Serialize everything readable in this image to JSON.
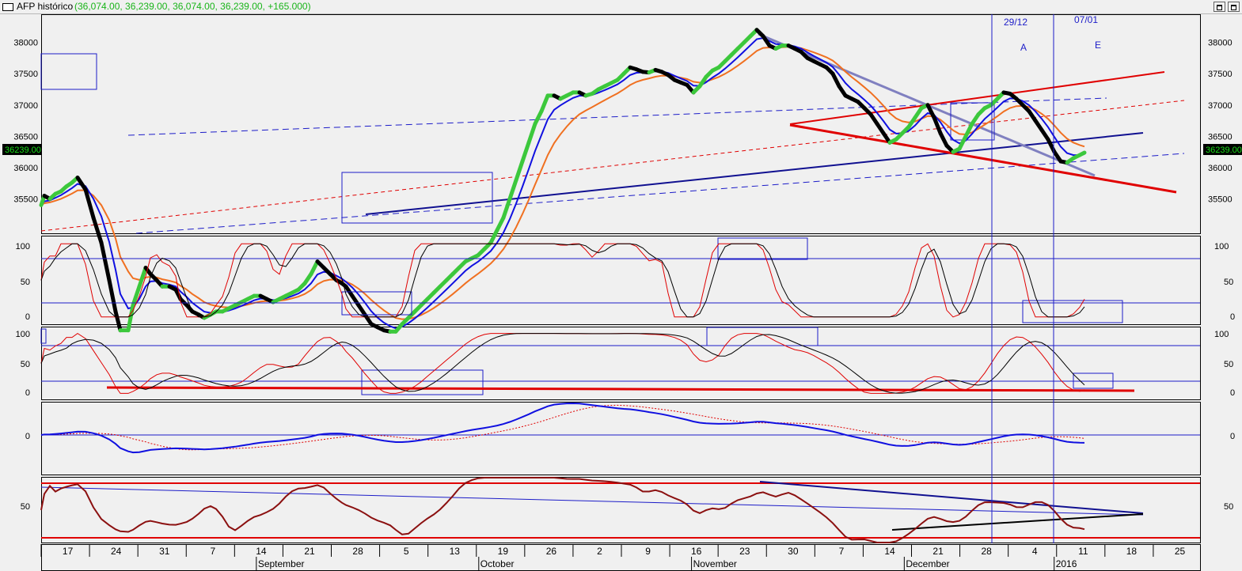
{
  "window": {
    "title": "AFP histórico",
    "quote": "(36,074.00, 36,239.00, 36,074.00, 36,239.00, +165.000)"
  },
  "colors": {
    "up_bar": "#3cc83c",
    "down_bar": "#000000",
    "fast_ma": "#1010e0",
    "slow_ma": "#f07020",
    "trendline": "#e00000",
    "guide": "#1c1cc8",
    "background": "#f0f0f0",
    "osc_main": "#000000",
    "osc_signal": "#e00000"
  },
  "price_label": "36239.00",
  "x_axis": {
    "days": [
      "17",
      "24",
      "31",
      "7",
      "14",
      "21",
      "28",
      "5",
      "13",
      "19",
      "26",
      "2",
      "9",
      "16",
      "23",
      "30",
      "7",
      "14",
      "21",
      "28",
      "4",
      "11",
      "18",
      "25"
    ],
    "months": [
      "September",
      "October",
      "November",
      "December",
      "2016"
    ]
  },
  "markers": [
    {
      "date": "29/12",
      "label": "A"
    },
    {
      "date": "07/01",
      "label": "E"
    }
  ],
  "chart_data": [
    {
      "type": "line",
      "name": "price",
      "y_ticks": [
        35500,
        36000,
        36500,
        37000,
        37500,
        38000
      ],
      "ylim": [
        34950,
        38450
      ],
      "close_points": [
        [
          52,
          35400
        ],
        [
          56,
          35550
        ],
        [
          63,
          35500
        ],
        [
          70,
          35580
        ],
        [
          77,
          35620
        ],
        [
          84,
          35700
        ],
        [
          91,
          35760
        ],
        [
          98,
          35840
        ],
        [
          108,
          35650
        ],
        [
          118,
          35200
        ],
        [
          128,
          34800
        ],
        [
          138,
          34200
        ],
        [
          146,
          33700
        ],
        [
          152,
          33400
        ],
        [
          162,
          33400
        ],
        [
          168,
          33800
        ],
        [
          176,
          34100
        ],
        [
          184,
          34400
        ],
        [
          190,
          34300
        ],
        [
          198,
          34200
        ],
        [
          205,
          34100
        ],
        [
          214,
          34100
        ],
        [
          222,
          34050
        ],
        [
          228,
          33900
        ],
        [
          236,
          33800
        ],
        [
          243,
          33700
        ],
        [
          251,
          33650
        ],
        [
          258,
          33600
        ],
        [
          266,
          33650
        ],
        [
          273,
          33700
        ],
        [
          281,
          33700
        ],
        [
          289,
          33750
        ],
        [
          297,
          33800
        ],
        [
          305,
          33850
        ],
        [
          313,
          33900
        ],
        [
          321,
          33950
        ],
        [
          329,
          33950
        ],
        [
          337,
          33900
        ],
        [
          345,
          33850
        ],
        [
          353,
          33900
        ],
        [
          361,
          33950
        ],
        [
          369,
          34000
        ],
        [
          377,
          34050
        ],
        [
          385,
          34150
        ],
        [
          393,
          34300
        ],
        [
          401,
          34500
        ],
        [
          409,
          34400
        ],
        [
          417,
          34300
        ],
        [
          425,
          34200
        ],
        [
          432,
          34150
        ],
        [
          437,
          34100
        ],
        [
          445,
          33950
        ],
        [
          453,
          33800
        ],
        [
          461,
          33650
        ],
        [
          469,
          33500
        ],
        [
          477,
          33450
        ],
        [
          485,
          33400
        ],
        [
          493,
          33380
        ],
        [
          500,
          33380
        ],
        [
          508,
          33500
        ],
        [
          516,
          33600
        ],
        [
          524,
          33700
        ],
        [
          532,
          33800
        ],
        [
          540,
          33900
        ],
        [
          548,
          34000
        ],
        [
          556,
          34100
        ],
        [
          564,
          34200
        ],
        [
          572,
          34300
        ],
        [
          580,
          34400
        ],
        [
          588,
          34500
        ],
        [
          596,
          34550
        ],
        [
          604,
          34600
        ],
        [
          612,
          34700
        ],
        [
          620,
          34800
        ],
        [
          628,
          35000
        ],
        [
          636,
          35200
        ],
        [
          644,
          35500
        ],
        [
          652,
          35800
        ],
        [
          660,
          36100
        ],
        [
          668,
          36400
        ],
        [
          676,
          36700
        ],
        [
          684,
          36900
        ],
        [
          692,
          37150
        ],
        [
          700,
          37150
        ],
        [
          708,
          37100
        ],
        [
          716,
          37150
        ],
        [
          724,
          37200
        ],
        [
          732,
          37200
        ],
        [
          740,
          37150
        ],
        [
          748,
          37180
        ],
        [
          756,
          37250
        ],
        [
          764,
          37300
        ],
        [
          772,
          37350
        ],
        [
          780,
          37400
        ],
        [
          788,
          37500
        ],
        [
          796,
          37600
        ],
        [
          804,
          37570
        ],
        [
          812,
          37530
        ],
        [
          820,
          37520
        ],
        [
          828,
          37560
        ],
        [
          836,
          37530
        ],
        [
          844,
          37480
        ],
        [
          852,
          37400
        ],
        [
          860,
          37360
        ],
        [
          868,
          37320
        ],
        [
          876,
          37200
        ],
        [
          884,
          37300
        ],
        [
          892,
          37450
        ],
        [
          900,
          37550
        ],
        [
          908,
          37600
        ],
        [
          916,
          37700
        ],
        [
          924,
          37800
        ],
        [
          932,
          37900
        ],
        [
          940,
          38000
        ],
        [
          948,
          38100
        ],
        [
          956,
          38200
        ],
        [
          964,
          38100
        ],
        [
          972,
          37950
        ],
        [
          980,
          37900
        ],
        [
          988,
          37950
        ],
        [
          996,
          37950
        ],
        [
          1004,
          37900
        ],
        [
          1012,
          37850
        ],
        [
          1020,
          37750
        ],
        [
          1028,
          37700
        ],
        [
          1036,
          37650
        ],
        [
          1044,
          37600
        ],
        [
          1052,
          37500
        ],
        [
          1060,
          37300
        ],
        [
          1068,
          37150
        ],
        [
          1076,
          37100
        ],
        [
          1084,
          37050
        ],
        [
          1092,
          36950
        ],
        [
          1100,
          36850
        ],
        [
          1108,
          36700
        ],
        [
          1116,
          36550
        ],
        [
          1124,
          36400
        ],
        [
          1132,
          36450
        ],
        [
          1140,
          36550
        ],
        [
          1148,
          36650
        ],
        [
          1156,
          36800
        ],
        [
          1164,
          36950
        ],
        [
          1172,
          37000
        ],
        [
          1180,
          36800
        ],
        [
          1188,
          36550
        ],
        [
          1196,
          36350
        ],
        [
          1204,
          36250
        ],
        [
          1212,
          36300
        ],
        [
          1220,
          36500
        ],
        [
          1228,
          36700
        ],
        [
          1236,
          36850
        ],
        [
          1244,
          36950
        ],
        [
          1252,
          37000
        ],
        [
          1260,
          37100
        ],
        [
          1268,
          37200
        ],
        [
          1276,
          37180
        ],
        [
          1284,
          37100
        ],
        [
          1292,
          37000
        ],
        [
          1300,
          36900
        ],
        [
          1308,
          36750
        ],
        [
          1316,
          36600
        ],
        [
          1324,
          36450
        ],
        [
          1332,
          36250
        ],
        [
          1340,
          36100
        ],
        [
          1348,
          36080
        ],
        [
          1356,
          36150
        ],
        [
          1364,
          36200
        ],
        [
          1370,
          36239
        ]
      ]
    },
    {
      "type": "line",
      "name": "stochastic",
      "y_ticks": [
        0,
        50,
        100
      ],
      "ylim": [
        -10,
        110
      ],
      "reference_lines": [
        20,
        80
      ]
    },
    {
      "type": "line",
      "name": "slow stochastic",
      "y_ticks": [
        0,
        50,
        100
      ],
      "ylim": [
        -10,
        110
      ],
      "reference_lines": [
        20,
        80
      ]
    },
    {
      "type": "line",
      "name": "oscillator",
      "y_ticks": [
        0
      ],
      "ylim": [
        -50,
        40
      ]
    },
    {
      "type": "line",
      "name": "strength",
      "y_ticks": [
        50
      ],
      "ylim": [
        0,
        100
      ]
    }
  ]
}
